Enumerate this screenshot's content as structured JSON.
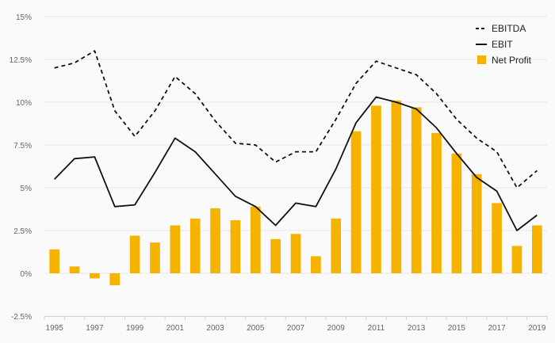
{
  "chart_data": {
    "type": "bar",
    "categories": [
      "1995",
      "1996",
      "1997",
      "1998",
      "1999",
      "2000",
      "2001",
      "2002",
      "2003",
      "2004",
      "2005",
      "2006",
      "2007",
      "2008",
      "2009",
      "2010",
      "2011",
      "2012",
      "2013",
      "2014",
      "2015",
      "2016",
      "2017",
      "2018",
      "2019"
    ],
    "x_tick_labels": [
      "1995",
      "1997",
      "1999",
      "2001",
      "2003",
      "2005",
      "2007",
      "2009",
      "2011",
      "2013",
      "2015",
      "2017",
      "2019"
    ],
    "y_tick_labels": [
      "-2.5%",
      "0%",
      "2.5%",
      "5%",
      "7.5%",
      "10%",
      "12.5%",
      "15%"
    ],
    "y_ticks": [
      -2.5,
      0,
      2.5,
      5,
      7.5,
      10,
      12.5,
      15
    ],
    "ylim": [
      -2.5,
      15
    ],
    "grid": true,
    "legend_position": "top-right",
    "series": [
      {
        "name": "EBITDA",
        "type": "line",
        "style": "dashed",
        "color": "#111111",
        "values": [
          12.0,
          12.3,
          13.0,
          9.5,
          8.0,
          9.5,
          11.5,
          10.5,
          8.9,
          7.6,
          7.5,
          6.5,
          7.1,
          7.1,
          9.0,
          11.1,
          12.4,
          12.0,
          11.6,
          10.5,
          9.0,
          7.9,
          7.1,
          5.0,
          6.0
        ]
      },
      {
        "name": "EBIT",
        "type": "line",
        "style": "solid",
        "color": "#111111",
        "values": [
          5.5,
          6.7,
          6.8,
          3.9,
          4.0,
          5.9,
          7.9,
          7.1,
          5.8,
          4.5,
          3.9,
          2.8,
          4.1,
          3.9,
          6.1,
          8.8,
          10.3,
          10.0,
          9.6,
          8.5,
          7.0,
          5.6,
          4.8,
          2.5,
          3.4
        ]
      },
      {
        "name": "Net Profit",
        "type": "bar",
        "color": "#f5b300",
        "values": [
          1.4,
          0.4,
          -0.3,
          -0.7,
          2.2,
          1.8,
          2.8,
          3.2,
          3.8,
          3.1,
          3.9,
          2.0,
          2.3,
          1.0,
          3.2,
          8.3,
          9.8,
          10.1,
          9.7,
          8.2,
          7.0,
          5.8,
          4.1,
          1.6,
          2.8
        ]
      }
    ]
  }
}
